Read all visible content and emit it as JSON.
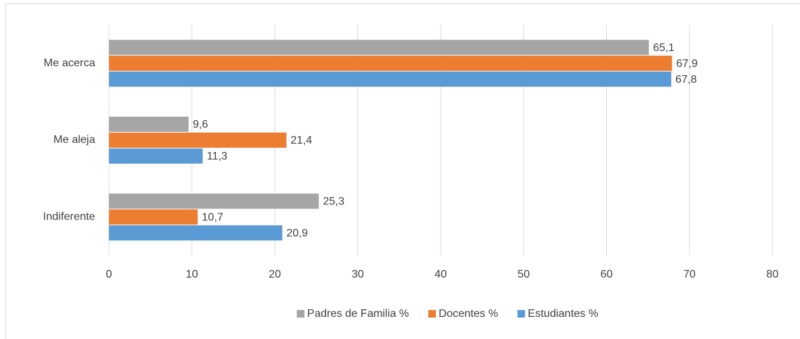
{
  "chart_data": {
    "type": "barh",
    "categories": [
      "Me acerca",
      "Me aleja",
      "Indiferente"
    ],
    "series": [
      {
        "name": "Padres de Familia %",
        "color": "#a5a5a5",
        "values": [
          65.1,
          9.6,
          25.3
        ],
        "value_labels": [
          "65,1",
          "9,6",
          "25,3"
        ]
      },
      {
        "name": "Docentes %",
        "color": "#ed7d31",
        "values": [
          67.9,
          21.4,
          10.7
        ],
        "value_labels": [
          "67,9",
          "21,4",
          "10,7"
        ]
      },
      {
        "name": "Estudiantes %",
        "color": "#5b9bd5",
        "values": [
          67.8,
          11.3,
          20.9
        ],
        "value_labels": [
          "67,8",
          "11,3",
          "20,9"
        ]
      }
    ],
    "xlim": [
      0,
      80
    ],
    "xticks": [
      0,
      10,
      20,
      30,
      40,
      50,
      60,
      70,
      80
    ],
    "grid": true,
    "legend": "bottom"
  }
}
